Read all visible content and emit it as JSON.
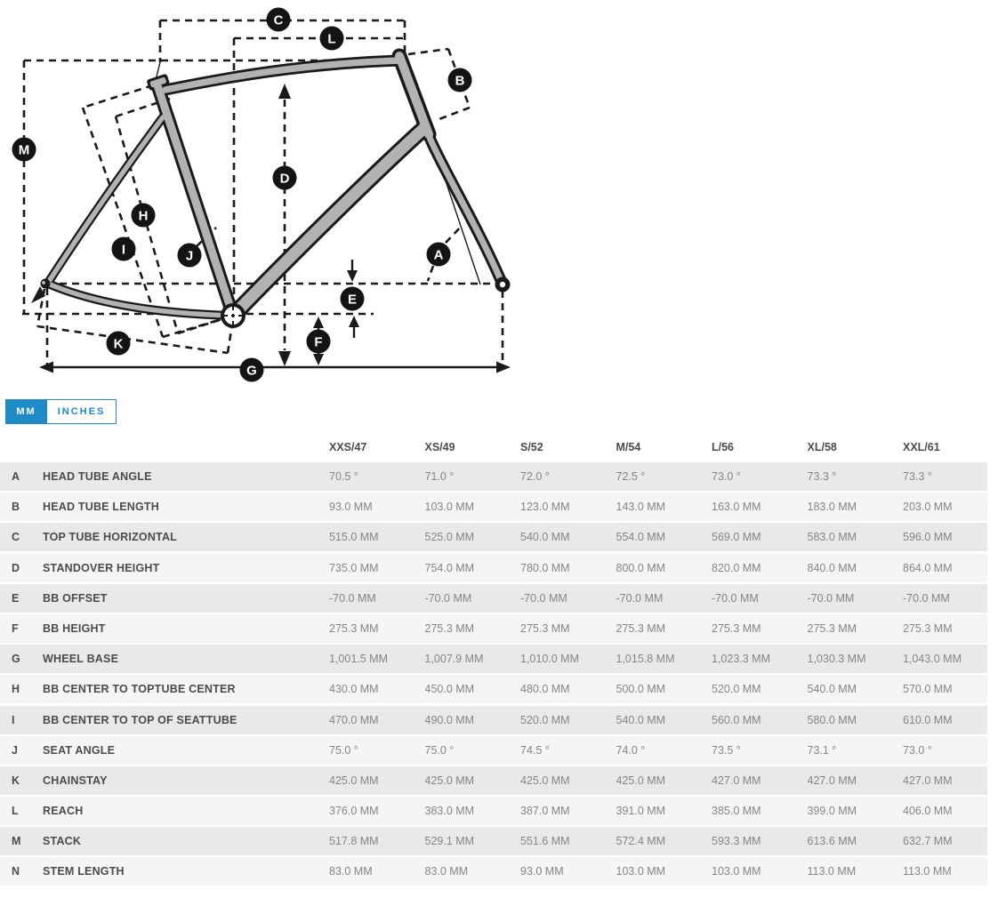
{
  "diagram": {
    "badge_letters": [
      "C",
      "L",
      "B",
      "M",
      "D",
      "H",
      "I",
      "J",
      "A",
      "E",
      "F",
      "K",
      "G"
    ]
  },
  "units_toggle": {
    "selected": "MM",
    "options": [
      "MM",
      "INCHES"
    ]
  },
  "geometry_table": {
    "size_columns": [
      "XXS/47",
      "XS/49",
      "S/52",
      "M/54",
      "L/56",
      "XL/58",
      "XXL/61"
    ],
    "rows": [
      {
        "letter": "A",
        "label": "HEAD TUBE ANGLE",
        "values": [
          "70.5 °",
          "71.0 °",
          "72.0 °",
          "72.5 °",
          "73.0 °",
          "73.3 °",
          "73.3 °"
        ]
      },
      {
        "letter": "B",
        "label": "HEAD TUBE LENGTH",
        "values": [
          "93.0 MM",
          "103.0 MM",
          "123.0 MM",
          "143.0 MM",
          "163.0 MM",
          "183.0 MM",
          "203.0 MM"
        ]
      },
      {
        "letter": "C",
        "label": "TOP TUBE HORIZONTAL",
        "values": [
          "515.0 MM",
          "525.0 MM",
          "540.0 MM",
          "554.0 MM",
          "569.0 MM",
          "583.0 MM",
          "596.0 MM"
        ]
      },
      {
        "letter": "D",
        "label": "STANDOVER HEIGHT",
        "values": [
          "735.0 MM",
          "754.0 MM",
          "780.0 MM",
          "800.0 MM",
          "820.0 MM",
          "840.0 MM",
          "864.0 MM"
        ]
      },
      {
        "letter": "E",
        "label": "BB OFFSET",
        "values": [
          "-70.0 MM",
          "-70.0 MM",
          "-70.0 MM",
          "-70.0 MM",
          "-70.0 MM",
          "-70.0 MM",
          "-70.0 MM"
        ]
      },
      {
        "letter": "F",
        "label": "BB HEIGHT",
        "values": [
          "275.3 MM",
          "275.3 MM",
          "275.3 MM",
          "275.3 MM",
          "275.3 MM",
          "275.3 MM",
          "275.3 MM"
        ]
      },
      {
        "letter": "G",
        "label": "WHEEL BASE",
        "values": [
          "1,001.5 MM",
          "1,007.9 MM",
          "1,010.0 MM",
          "1,015.8 MM",
          "1,023.3 MM",
          "1,030.3 MM",
          "1,043.0 MM"
        ]
      },
      {
        "letter": "H",
        "label": "BB CENTER TO TOPTUBE CENTER",
        "values": [
          "430.0 MM",
          "450.0 MM",
          "480.0 MM",
          "500.0 MM",
          "520.0 MM",
          "540.0 MM",
          "570.0 MM"
        ]
      },
      {
        "letter": "I",
        "label": "BB CENTER TO TOP OF SEATTUBE",
        "values": [
          "470.0 MM",
          "490.0 MM",
          "520.0 MM",
          "540.0 MM",
          "560.0 MM",
          "580.0 MM",
          "610.0 MM"
        ]
      },
      {
        "letter": "J",
        "label": "SEAT ANGLE",
        "values": [
          "75.0 °",
          "75.0 °",
          "74.5 °",
          "74.0 °",
          "73.5 °",
          "73.1 °",
          "73.0 °"
        ]
      },
      {
        "letter": "K",
        "label": "CHAINSTAY",
        "values": [
          "425.0 MM",
          "425.0 MM",
          "425.0 MM",
          "425.0 MM",
          "427.0 MM",
          "427.0 MM",
          "427.0 MM"
        ]
      },
      {
        "letter": "L",
        "label": "REACH",
        "values": [
          "376.0 MM",
          "383.0 MM",
          "387.0 MM",
          "391.0 MM",
          "385.0 MM",
          "399.0 MM",
          "406.0 MM"
        ]
      },
      {
        "letter": "M",
        "label": "STACK",
        "values": [
          "517.8 MM",
          "529.1 MM",
          "551.6 MM",
          "572.4 MM",
          "593.3 MM",
          "613.6 MM",
          "632.7 MM"
        ]
      },
      {
        "letter": "N",
        "label": "STEM LENGTH",
        "values": [
          "83.0 MM",
          "83.0 MM",
          "93.0 MM",
          "103.0 MM",
          "103.0 MM",
          "113.0 MM",
          "113.0 MM"
        ]
      }
    ]
  },
  "colors": {
    "accent_blue": "#1e8bc6",
    "frame_gray": "#b2b2b2",
    "row_odd": "#e9e9e9",
    "row_even": "#f5f5f5",
    "label_text": "#4b4b4b",
    "value_text": "#858585"
  }
}
